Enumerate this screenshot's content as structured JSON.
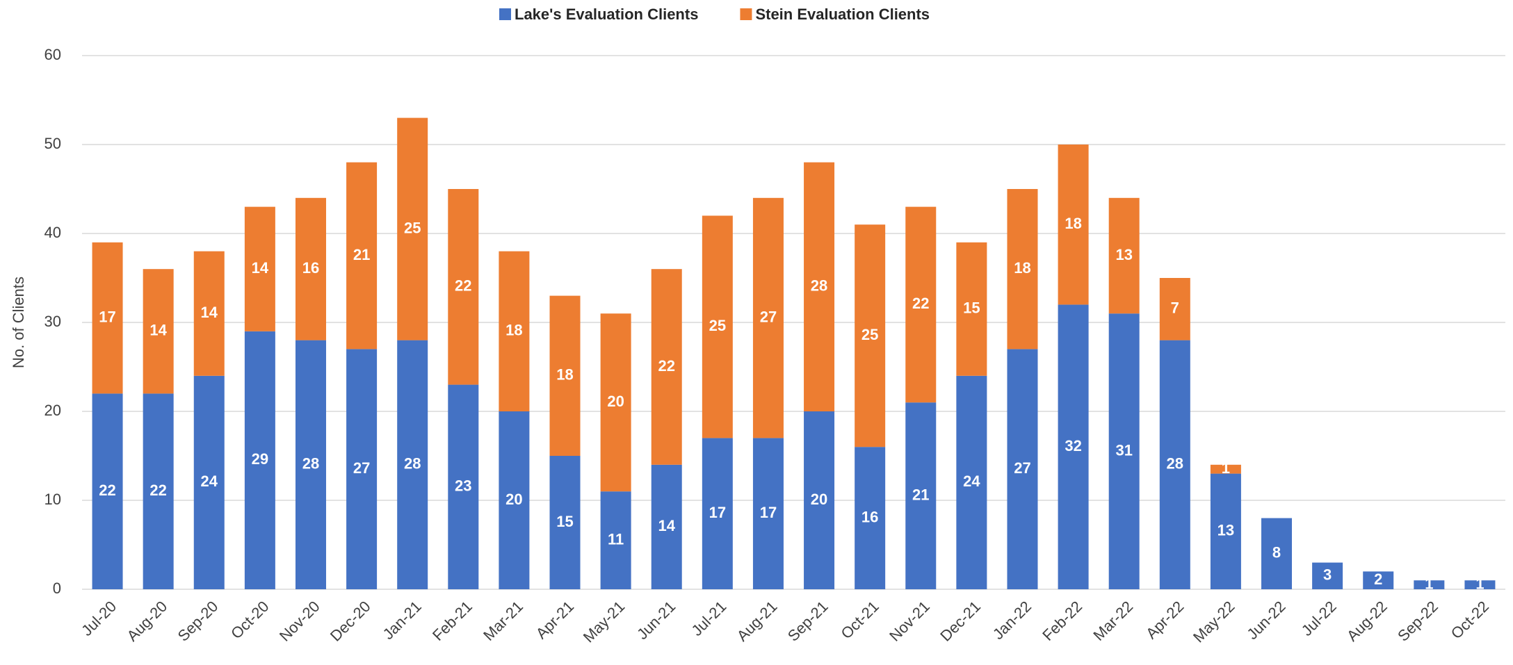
{
  "chart_data": {
    "type": "stacked_bar",
    "categories": [
      "Jul-20",
      "Aug-20",
      "Sep-20",
      "Oct-20",
      "Nov-20",
      "Dec-20",
      "Jan-21",
      "Feb-21",
      "Mar-21",
      "Apr-21",
      "May-21",
      "Jun-21",
      "Jul-21",
      "Aug-21",
      "Sep-21",
      "Oct-21",
      "Nov-21",
      "Dec-21",
      "Jan-22",
      "Feb-22",
      "Mar-22",
      "Apr-22",
      "May-22",
      "Jun-22",
      "Jul-22",
      "Aug-22",
      "Sep-22",
      "Oct-22"
    ],
    "series": [
      {
        "name": "Lake's Evaluation Clients",
        "color": "#4472c4",
        "values": [
          22,
          22,
          24,
          29,
          28,
          27,
          28,
          23,
          20,
          15,
          11,
          14,
          17,
          17,
          20,
          16,
          21,
          24,
          27,
          32,
          31,
          28,
          13,
          8,
          3,
          2,
          1,
          1
        ]
      },
      {
        "name": "Stein Evaluation Clients",
        "color": "#ed7d31",
        "values": [
          17,
          14,
          14,
          14,
          16,
          21,
          25,
          22,
          18,
          18,
          20,
          22,
          25,
          27,
          28,
          25,
          22,
          15,
          18,
          18,
          13,
          7,
          1,
          null,
          null,
          null,
          null,
          null
        ]
      }
    ],
    "y_label": "No. of Clients",
    "ylim": [
      0,
      60
    ],
    "yticks": [
      0,
      10,
      20,
      30,
      40,
      50,
      60
    ],
    "grid": true,
    "legend": "top"
  }
}
